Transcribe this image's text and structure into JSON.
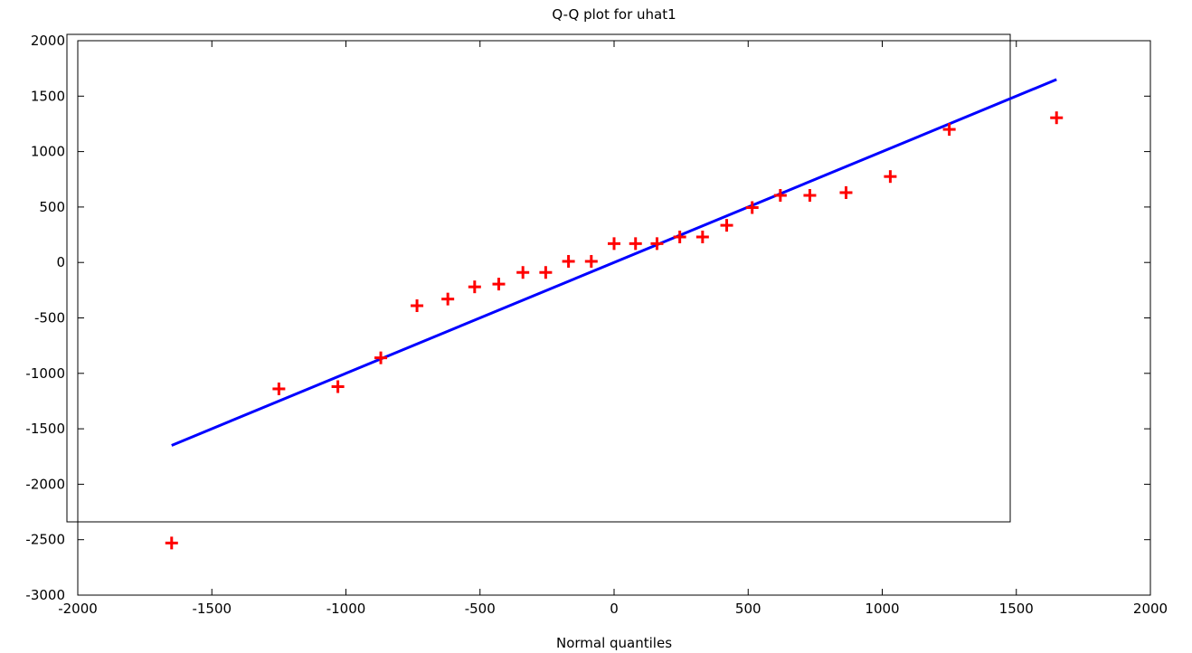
{
  "chart_data": {
    "type": "scatter",
    "title": "Q-Q plot for uhat1",
    "xlabel": "Normal quantiles",
    "ylabel": "",
    "xlim": [
      -2000,
      2000
    ],
    "ylim": [
      -3000,
      2000
    ],
    "x_ticks": [
      -2000,
      -1500,
      -1000,
      -500,
      0,
      500,
      1000,
      1500,
      2000
    ],
    "y_ticks": [
      2000,
      1500,
      1000,
      500,
      0,
      -500,
      -1000,
      -1500,
      -2000,
      -2500,
      -3000
    ],
    "grid": false,
    "series": [
      {
        "kind": "points",
        "marker": "plus",
        "color": "#ff0000",
        "x": [
          -1650,
          -1250,
          -1030,
          -870,
          -735,
          -620,
          -520,
          -430,
          -340,
          -255,
          -170,
          -85,
          0,
          80,
          160,
          245,
          330,
          420,
          515,
          620,
          730,
          865,
          1030,
          1250,
          1650
        ],
        "y": [
          -2530,
          -1140,
          -1120,
          -860,
          -390,
          -330,
          -220,
          -195,
          -90,
          -90,
          10,
          10,
          170,
          170,
          170,
          230,
          230,
          335,
          495,
          605,
          605,
          630,
          775,
          1200,
          1305
        ]
      },
      {
        "kind": "line",
        "color": "#0000ff",
        "x": [
          -1650,
          1650
        ],
        "y": [
          -1650,
          1650
        ]
      }
    ]
  }
}
